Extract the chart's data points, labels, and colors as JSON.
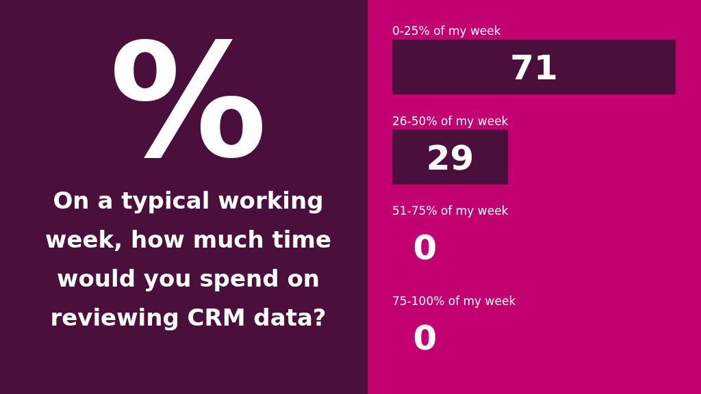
{
  "chart_data": {
    "type": "bar",
    "orientation": "horizontal",
    "title": "On a typical working week, how much time would you spend on reviewing CRM data?",
    "annotations": [
      "%"
    ],
    "categories": [
      "0-25% of my week",
      "26-50% of my week",
      "51-75% of my week",
      "75-100% of my week"
    ],
    "values": [
      71,
      29,
      0,
      0
    ],
    "color": "#4a0f3b",
    "data_labels": true
  }
}
